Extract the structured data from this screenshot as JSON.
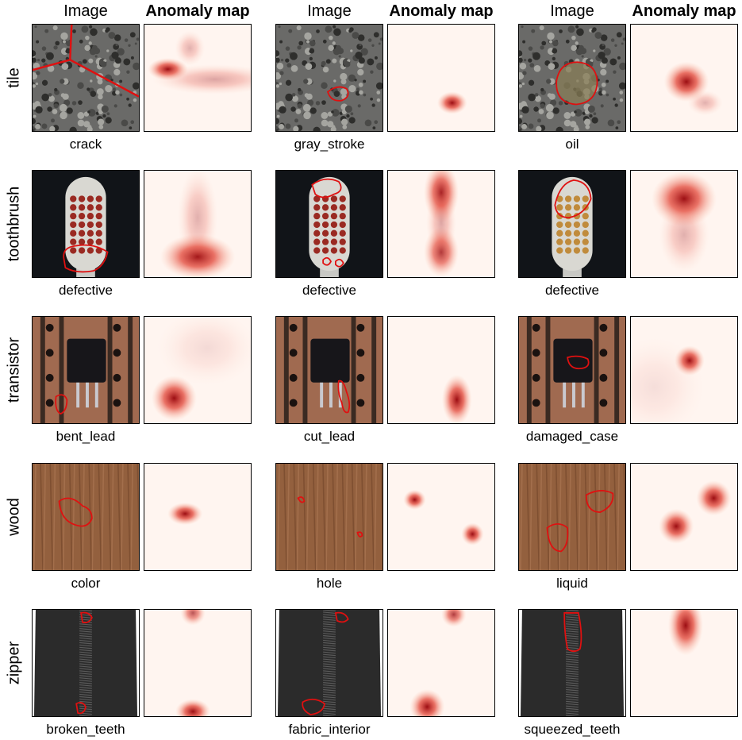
{
  "columns": {
    "image_label": "Image",
    "anomaly_label": "Anomaly map"
  },
  "rows": [
    {
      "label": "tile",
      "cells": [
        {
          "defect": "crack",
          "texture": "tile"
        },
        {
          "defect": "gray_stroke",
          "texture": "tile"
        },
        {
          "defect": "oil",
          "texture": "tile"
        }
      ]
    },
    {
      "label": "toothbrush",
      "cells": [
        {
          "defect": "defective",
          "texture": "toothbrush"
        },
        {
          "defect": "defective",
          "texture": "toothbrush"
        },
        {
          "defect": "defective",
          "texture": "toothbrush"
        }
      ]
    },
    {
      "label": "transistor",
      "cells": [
        {
          "defect": "bent_lead",
          "texture": "transistor"
        },
        {
          "defect": "cut_lead",
          "texture": "transistor"
        },
        {
          "defect": "damaged_case",
          "texture": "transistor"
        }
      ]
    },
    {
      "label": "wood",
      "cells": [
        {
          "defect": "color",
          "texture": "wood"
        },
        {
          "defect": "hole",
          "texture": "wood"
        },
        {
          "defect": "liquid",
          "texture": "wood"
        }
      ]
    },
    {
      "label": "zipper",
      "cells": [
        {
          "defect": "broken_teeth",
          "texture": "zipper"
        },
        {
          "defect": "fabric_interior",
          "texture": "zipper"
        },
        {
          "defect": "squeezed_teeth",
          "texture": "zipper"
        }
      ]
    }
  ],
  "colors": {
    "contour": "#e01010",
    "heat_peak": "#9b0d12",
    "heat_base": "#fff5f0"
  }
}
